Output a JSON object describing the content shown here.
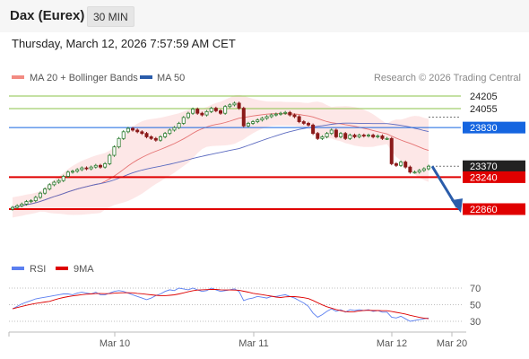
{
  "header": {
    "instrument": "Dax (Eurex)",
    "timeframe": "30 MIN"
  },
  "datetime": "Thursday, March 12, 2026 7:57:59 AM CET",
  "legend": {
    "bollinger": "MA 20 + Bollinger Bands",
    "ma50": "MA 50",
    "copyright": "Research © 2026 Trading Central"
  },
  "rsi_legend": {
    "rsi": "RSI",
    "ma9": "9MA"
  },
  "colors": {
    "up": "#2e7d32",
    "down": "#8b1a1a",
    "band_fill": "#fde3e3",
    "ma20": "#e57373",
    "ma50": "#5c6bc0",
    "resistance_blue": "#1565e0",
    "support_red": "#e00000",
    "target_green": "#8bc34a",
    "current": "#222222",
    "arrow": "#2a5caa",
    "rsi": "#5b7ff0",
    "rsi_ma": "#dd0000"
  },
  "chart_data": {
    "type": "candlestick",
    "ylim": [
      22720,
      24320
    ],
    "x_ticks": [
      "Mar 10",
      "Mar 11",
      "Mar 12",
      "Mar 20"
    ],
    "levels": [
      {
        "value": 24205,
        "label": "24205",
        "kind": "target"
      },
      {
        "value": 24055,
        "label": "24055",
        "kind": "target"
      },
      {
        "value": 23830,
        "label": "23830",
        "kind": "pivot"
      },
      {
        "value": 23370,
        "label": "23370",
        "kind": "current"
      },
      {
        "value": 23240,
        "label": "23240",
        "kind": "support"
      },
      {
        "value": 22860,
        "label": "22860",
        "kind": "support"
      }
    ],
    "candles_close": [
      22880,
      22900,
      22920,
      22950,
      22960,
      23000,
      23050,
      23100,
      23150,
      23180,
      23200,
      23250,
      23300,
      23310,
      23330,
      23350,
      23340,
      23360,
      23380,
      23360,
      23400,
      23500,
      23600,
      23700,
      23780,
      23820,
      23800,
      23780,
      23760,
      23720,
      23700,
      23680,
      23720,
      23760,
      23800,
      23830,
      23880,
      23950,
      24000,
      24050,
      24000,
      23980,
      24020,
      24060,
      24030,
      24000,
      24080,
      24100,
      24120,
      24060,
      23850,
      23880,
      23900,
      23920,
      23940,
      23960,
      23980,
      23990,
      24000,
      24010,
      23980,
      23960,
      23900,
      23880,
      23860,
      23760,
      23700,
      23720,
      23760,
      23800,
      23720,
      23760,
      23700,
      23740,
      23720,
      23740,
      23730,
      23740,
      23720,
      23730,
      23700,
      23700,
      23400,
      23380,
      23420,
      23360,
      23300,
      23300,
      23320,
      23340,
      23370
    ],
    "rsi": {
      "levels": [
        70,
        50,
        30
      ],
      "values": [
        45,
        48,
        51,
        53,
        55,
        57,
        58,
        59,
        60,
        61,
        62,
        63,
        63,
        62,
        64,
        65,
        64,
        63,
        65,
        62,
        62,
        64,
        66,
        67,
        66,
        64,
        62,
        60,
        58,
        56,
        58,
        61,
        63,
        66,
        68,
        67,
        70,
        69,
        68,
        70,
        68,
        66,
        67,
        70,
        68,
        66,
        67,
        68,
        69,
        66,
        55,
        57,
        58,
        60,
        59,
        58,
        60,
        60,
        61,
        62,
        60,
        58,
        55,
        52,
        48,
        40,
        35,
        38,
        42,
        45,
        42,
        44,
        41,
        44,
        43,
        44,
        43,
        44,
        42,
        43,
        41,
        41,
        35,
        34,
        36,
        33,
        30,
        31,
        32,
        33,
        34
      ]
    }
  }
}
